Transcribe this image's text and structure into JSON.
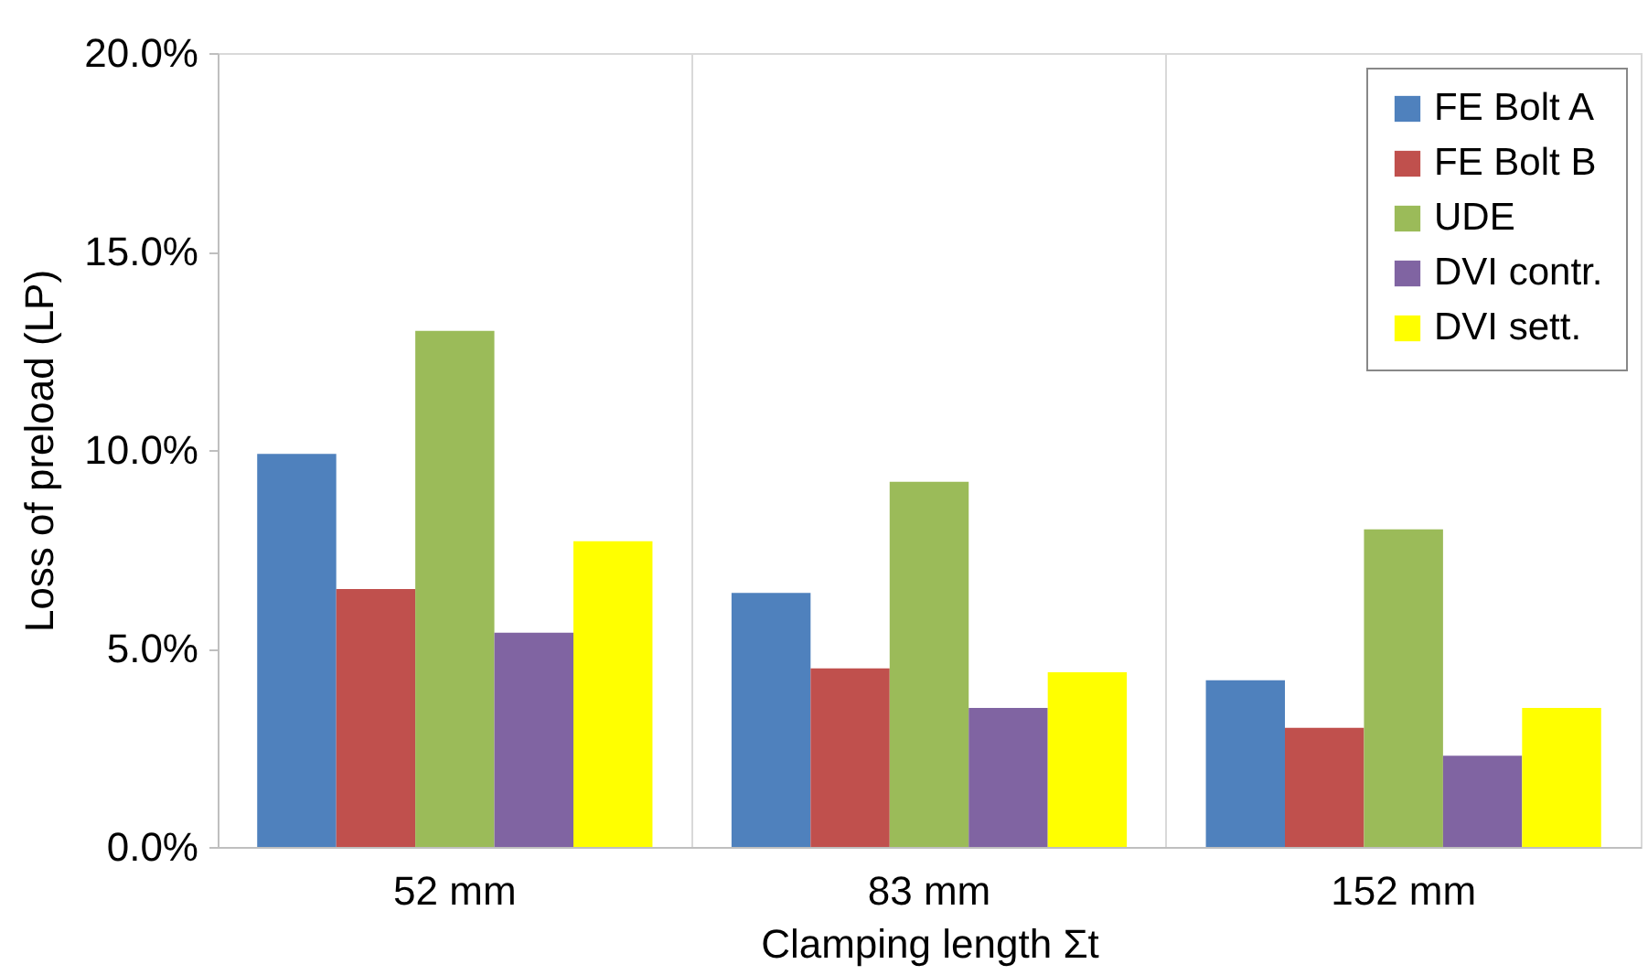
{
  "chart_data": {
    "type": "bar",
    "xlabel": "Clamping length Σt",
    "ylabel": "Loss of preload (LP)",
    "categories": [
      "52 mm",
      "83 mm",
      "152 mm"
    ],
    "series": [
      {
        "name": "FE Bolt A",
        "color": "#4f81bd",
        "values": [
          9.9,
          6.4,
          4.2
        ]
      },
      {
        "name": "FE Bolt B",
        "color": "#c0504d",
        "values": [
          6.5,
          4.5,
          3.0
        ]
      },
      {
        "name": "UDE",
        "color": "#9bbb59",
        "values": [
          13.0,
          9.2,
          8.0
        ]
      },
      {
        "name": "DVI contr.",
        "color": "#8064a2",
        "values": [
          5.4,
          3.5,
          2.3
        ]
      },
      {
        "name": "DVI sett.",
        "color": "#ffff00",
        "values": [
          7.7,
          4.4,
          3.5
        ]
      }
    ],
    "ylim": [
      0,
      20
    ],
    "yticks": [
      {
        "value": 0,
        "label": "0.0%"
      },
      {
        "value": 5,
        "label": "5.0%"
      },
      {
        "value": 10,
        "label": "10.0%"
      },
      {
        "value": 15,
        "label": "15.0%"
      },
      {
        "value": 20,
        "label": "20.0%"
      }
    ],
    "grid": "x",
    "legend": "top right"
  }
}
